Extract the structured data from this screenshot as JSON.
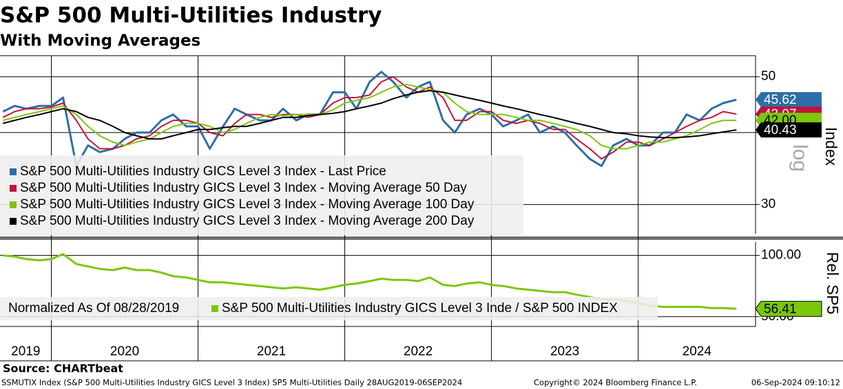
{
  "chart_data": [
    {
      "type": "line",
      "title": "S&P 500 Multi-Utilities Industry",
      "subtitle": "With Moving Averages",
      "y_label": "Index",
      "scale_label": "log",
      "log_scale": true,
      "grid": true,
      "x": [
        2019.67,
        2019.75,
        2019.83,
        2019.92,
        2020.0,
        2020.08,
        2020.17,
        2020.25,
        2020.33,
        2020.42,
        2020.5,
        2020.58,
        2020.67,
        2020.75,
        2020.83,
        2020.92,
        2021.0,
        2021.08,
        2021.17,
        2021.25,
        2021.33,
        2021.42,
        2021.5,
        2021.58,
        2021.67,
        2021.75,
        2021.83,
        2021.92,
        2022.0,
        2022.08,
        2022.17,
        2022.25,
        2022.33,
        2022.42,
        2022.5,
        2022.58,
        2022.67,
        2022.75,
        2022.83,
        2022.92,
        2023.0,
        2023.08,
        2023.17,
        2023.25,
        2023.33,
        2023.42,
        2023.5,
        2023.58,
        2023.67,
        2023.75,
        2023.83,
        2023.92,
        2024.0,
        2024.08,
        2024.17,
        2024.25,
        2024.33,
        2024.42,
        2024.5,
        2024.58,
        2024.67
      ],
      "xlim": [
        2019.65,
        2024.8
      ],
      "ylim": [
        26.7,
        54.4
      ],
      "yticks": [
        30,
        40,
        50
      ],
      "series": [
        {
          "name": "S&P 500 Multi-Utilities Industry GICS Level 3 Index - Last Price",
          "color": "#2e6ea6",
          "tag_label": "45.62",
          "values": [
            43.5,
            44.5,
            44,
            44.5,
            44.5,
            46,
            35,
            38,
            37,
            37.5,
            39,
            40,
            40,
            42,
            43,
            41,
            41,
            37.5,
            41,
            44,
            43,
            42,
            42,
            44,
            42,
            43,
            43,
            47,
            47,
            44,
            49,
            51,
            49,
            46,
            48,
            49,
            42,
            40,
            43,
            44,
            43,
            41,
            42,
            43,
            40,
            41,
            40,
            38,
            36,
            35,
            38,
            39,
            38,
            38,
            40,
            40,
            43,
            42,
            44,
            45,
            45.62
          ]
        },
        {
          "name": "S&P 500 Multi-Utilities Industry GICS Level 3 Index - Moving Average 50 Day",
          "color": "#c0143c",
          "tag_label": "43.07",
          "values": [
            42.5,
            43.5,
            44,
            44,
            44.3,
            45,
            42,
            39,
            37.5,
            37.5,
            38,
            39,
            39.5,
            41,
            42,
            42,
            41.5,
            40,
            39.5,
            41.5,
            43,
            43,
            42.5,
            43,
            43,
            42.5,
            43,
            45,
            46,
            46,
            46.5,
            49,
            50,
            48,
            47,
            48,
            46,
            42,
            42,
            43.5,
            43.5,
            42,
            41.5,
            42,
            41.5,
            40.5,
            40.5,
            39,
            37.5,
            36,
            37,
            38.5,
            38.5,
            38,
            39,
            40,
            41,
            42,
            42.5,
            43.5,
            43.07
          ]
        },
        {
          "name": "S&P 500 Multi-Utilities Industry GICS Level 3 Index - Moving Average 100 Day",
          "color": "#7ac70c",
          "tag_label": "42.00",
          "values": [
            42,
            42.5,
            43,
            43.5,
            44,
            44.5,
            43,
            41,
            39.5,
            38.5,
            38,
            38.5,
            39,
            40,
            41,
            41.5,
            41.5,
            41,
            40,
            40.5,
            41.5,
            42.5,
            43,
            42.8,
            43,
            43,
            43,
            43.8,
            45,
            45.5,
            46,
            47,
            48,
            48.5,
            48,
            47.5,
            47,
            45,
            43.5,
            43,
            43,
            43,
            42.5,
            42,
            42,
            41.5,
            41,
            40.5,
            39.5,
            38,
            37.5,
            37.5,
            38,
            38.5,
            38.5,
            39,
            39.5,
            40.5,
            41.5,
            42,
            42
          ]
        },
        {
          "name": "S&P 500 Multi-Utilities Industry GICS Level 3 Index - Moving Average 200 Day",
          "color": "#000000",
          "tag_label": "40.43",
          "values": [
            41.5,
            42,
            42.5,
            43,
            43.5,
            44,
            43.5,
            42.5,
            42,
            41,
            40,
            39.5,
            39,
            39,
            39.5,
            40,
            40.5,
            40.5,
            40.8,
            41,
            41,
            41.5,
            42,
            42.5,
            42.5,
            42.8,
            43,
            43.2,
            43.5,
            44,
            44.5,
            45,
            45.8,
            46.5,
            47,
            47.3,
            47,
            46.5,
            46,
            45.5,
            45,
            44.5,
            44,
            43.5,
            43,
            42.5,
            42,
            41.5,
            41,
            40.5,
            40,
            39.8,
            39.5,
            39.3,
            39.2,
            39.2,
            39.3,
            39.5,
            39.8,
            40.1,
            40.43
          ]
        }
      ]
    },
    {
      "type": "line",
      "y_label": "Rel. SP5",
      "note": "Normalized As Of 08/28/2019",
      "log_scale": false,
      "grid": true,
      "x": [
        2019.67,
        2019.75,
        2019.83,
        2019.92,
        2020.0,
        2020.08,
        2020.17,
        2020.25,
        2020.33,
        2020.42,
        2020.5,
        2020.58,
        2020.67,
        2020.75,
        2020.83,
        2020.92,
        2021.0,
        2021.08,
        2021.17,
        2021.25,
        2021.33,
        2021.42,
        2021.5,
        2021.58,
        2021.67,
        2021.75,
        2021.83,
        2021.92,
        2022.0,
        2022.08,
        2022.17,
        2022.25,
        2022.33,
        2022.42,
        2022.5,
        2022.58,
        2022.67,
        2022.75,
        2022.83,
        2022.92,
        2023.0,
        2023.08,
        2023.17,
        2023.25,
        2023.33,
        2023.42,
        2023.5,
        2023.58,
        2023.67,
        2023.75,
        2023.83,
        2023.92,
        2024.0,
        2024.08,
        2024.17,
        2024.25,
        2024.33,
        2024.42,
        2024.5,
        2024.58,
        2024.67
      ],
      "xlim": [
        2019.65,
        2024.8
      ],
      "ylim": [
        42,
        111
      ],
      "yticks": [
        {
          "value": 50,
          "label": "50.00"
        },
        {
          "value": 100,
          "label": "100.00"
        }
      ],
      "xticks": [
        {
          "value": 2019,
          "label": "2019"
        },
        {
          "value": 2020,
          "label": "2020"
        },
        {
          "value": 2021,
          "label": "2021"
        },
        {
          "value": 2022,
          "label": "2022"
        },
        {
          "value": 2023,
          "label": "2023"
        },
        {
          "value": 2024,
          "label": "2024"
        }
      ],
      "series": [
        {
          "name": "S&P 500 Multi-Utilities Industry GICS Level 3 Inde / S&P 500 INDEX",
          "color": "#7ac70c",
          "tag_label": "56.41",
          "values": [
            100,
            99,
            97,
            96,
            97,
            101,
            93,
            91,
            89,
            88,
            90,
            88,
            88,
            86,
            83,
            82,
            80,
            78,
            78,
            77,
            76,
            75,
            74,
            73,
            74,
            73,
            72,
            74,
            76,
            77,
            79,
            81,
            80,
            80,
            79,
            82,
            76,
            75,
            77,
            78,
            76,
            75,
            73,
            72,
            71,
            70,
            70,
            68,
            66,
            64,
            64,
            63,
            61,
            59,
            58,
            58,
            58,
            58,
            57,
            57,
            56.41
          ]
        }
      ]
    }
  ],
  "source": "Source: CHARTbeat",
  "footer": {
    "left": "SSMUTIX Index (S&P 500 Multi-Utilities Industry GICS Level 3 Index) SP5 Multi-Utilities  Daily 28AUG2019-06SEP2024",
    "center": "Copyright© 2024 Bloomberg Finance L.P.",
    "right": "06-Sep-2024 09:10:12"
  }
}
